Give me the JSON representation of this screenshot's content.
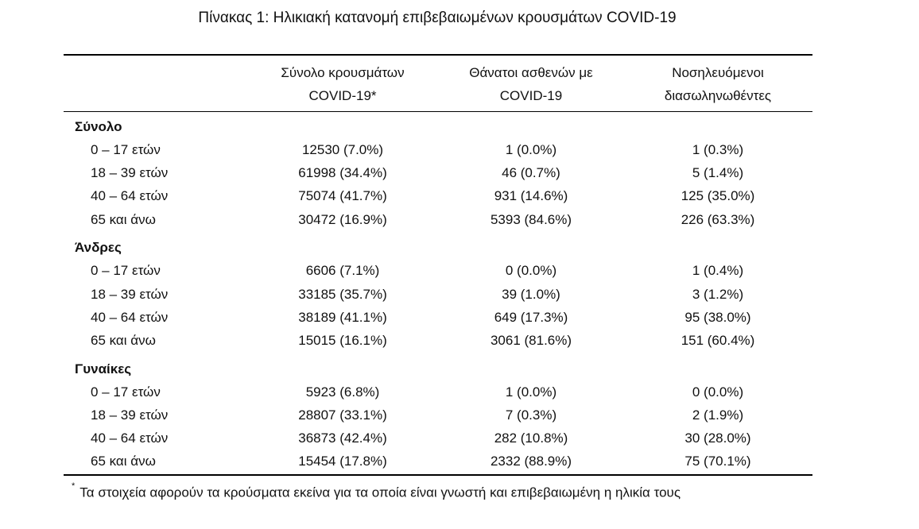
{
  "title": "Πίνακας 1: Ηλικιακή κατανομή επιβεβαιωμένων κρουσμάτων COVID-19",
  "columns": [
    {
      "line1": "Σύνολο κρουσμάτων",
      "line2": "COVID-19*"
    },
    {
      "line1": "Θάνατοι ασθενών με",
      "line2": "COVID-19"
    },
    {
      "line1": "Νοσηλευόμενοι",
      "line2": "διασωληνωθέντες"
    }
  ],
  "groups": [
    {
      "name": "Σύνολο",
      "rows": [
        {
          "age": "0 – 17 ετών",
          "cases": "12530 (7.0%)",
          "deaths": "1 (0.0%)",
          "intubated": "1 (0.3%)"
        },
        {
          "age": "18 – 39 ετών",
          "cases": "61998 (34.4%)",
          "deaths": "46 (0.7%)",
          "intubated": "5 (1.4%)"
        },
        {
          "age": "40 – 64 ετών",
          "cases": "75074 (41.7%)",
          "deaths": "931 (14.6%)",
          "intubated": "125 (35.0%)"
        },
        {
          "age": "65 και άνω",
          "cases": "30472 (16.9%)",
          "deaths": "5393 (84.6%)",
          "intubated": "226 (63.3%)"
        }
      ]
    },
    {
      "name": "Άνδρες",
      "rows": [
        {
          "age": "0 – 17 ετών",
          "cases": "6606 (7.1%)",
          "deaths": "0 (0.0%)",
          "intubated": "1 (0.4%)"
        },
        {
          "age": "18 – 39 ετών",
          "cases": "33185 (35.7%)",
          "deaths": "39 (1.0%)",
          "intubated": "3 (1.2%)"
        },
        {
          "age": "40 – 64 ετών",
          "cases": "38189 (41.1%)",
          "deaths": "649 (17.3%)",
          "intubated": "95 (38.0%)"
        },
        {
          "age": "65 και άνω",
          "cases": "15015 (16.1%)",
          "deaths": "3061 (81.6%)",
          "intubated": "151 (60.4%)"
        }
      ]
    },
    {
      "name": "Γυναίκες",
      "rows": [
        {
          "age": "0 – 17 ετών",
          "cases": "5923 (6.8%)",
          "deaths": "1 (0.0%)",
          "intubated": "0 (0.0%)"
        },
        {
          "age": "18 – 39 ετών",
          "cases": "28807 (33.1%)",
          "deaths": "7 (0.3%)",
          "intubated": "2 (1.9%)"
        },
        {
          "age": "40 – 64 ετών",
          "cases": "36873 (42.4%)",
          "deaths": "282 (10.8%)",
          "intubated": "30 (28.0%)"
        },
        {
          "age": "65 και άνω",
          "cases": "15454 (17.8%)",
          "deaths": "2332 (88.9%)",
          "intubated": "75 (70.1%)"
        }
      ]
    }
  ],
  "footnote": {
    "mark": "*",
    "text": "Τα στοιχεία αφορούν τα κρούσματα εκείνα για τα οποία είναι γνωστή και επιβεβαιωμένη η ηλικία τους"
  }
}
